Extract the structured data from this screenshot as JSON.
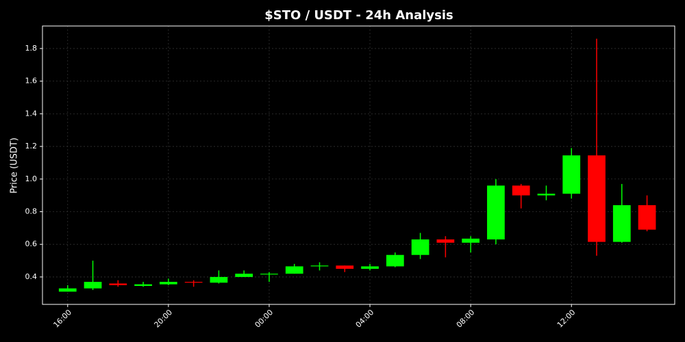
{
  "chart_data": {
    "type": "candlestick",
    "title": "$STO / USDT - 24h Analysis",
    "y_label": "Price (USDT)",
    "x": [
      16,
      17,
      18,
      19,
      20,
      21,
      22,
      23,
      24,
      25,
      26,
      27,
      28,
      29,
      30,
      31,
      32,
      33,
      34,
      35,
      36,
      37,
      38,
      39
    ],
    "open": [
      0.31,
      0.33,
      0.36,
      0.345,
      0.355,
      0.37,
      0.365,
      0.4,
      0.415,
      0.42,
      0.465,
      0.47,
      0.45,
      0.465,
      0.535,
      0.63,
      0.61,
      0.63,
      0.96,
      0.9,
      0.91,
      1.145,
      0.615,
      0.84
    ],
    "high": [
      0.35,
      0.5,
      0.38,
      0.37,
      0.39,
      0.38,
      0.44,
      0.44,
      0.43,
      0.48,
      0.49,
      0.47,
      0.48,
      0.55,
      0.67,
      0.65,
      0.65,
      1.0,
      0.97,
      0.96,
      1.19,
      1.86,
      0.97,
      0.9
    ],
    "low": [
      0.31,
      0.32,
      0.34,
      0.34,
      0.35,
      0.34,
      0.36,
      0.4,
      0.37,
      0.42,
      0.44,
      0.43,
      0.44,
      0.46,
      0.51,
      0.52,
      0.55,
      0.6,
      0.82,
      0.87,
      0.88,
      0.53,
      0.61,
      0.68
    ],
    "close": [
      0.33,
      0.37,
      0.35,
      0.355,
      0.37,
      0.365,
      0.4,
      0.42,
      0.42,
      0.465,
      0.47,
      0.45,
      0.465,
      0.535,
      0.63,
      0.61,
      0.635,
      0.96,
      0.9,
      0.91,
      1.145,
      0.615,
      0.84,
      0.69
    ],
    "up_color": "#00ff00",
    "down_color": "#ff0000",
    "xlim": [
      15,
      40.1
    ],
    "xticks": [
      {
        "value": 16,
        "label": "16:00"
      },
      {
        "value": 20,
        "label": "20:00"
      },
      {
        "value": 24,
        "label": "00:00"
      },
      {
        "value": 28,
        "label": "04:00"
      },
      {
        "value": 32,
        "label": "08:00"
      },
      {
        "value": 36,
        "label": "12:00"
      }
    ],
    "ylim": [
      0.232,
      1.938
    ],
    "yticks": [
      0.4,
      0.6,
      0.8,
      {
        "value": 1,
        "label": "1.0"
      },
      1.2,
      1.4,
      1.6,
      1.8
    ],
    "grid": true
  }
}
